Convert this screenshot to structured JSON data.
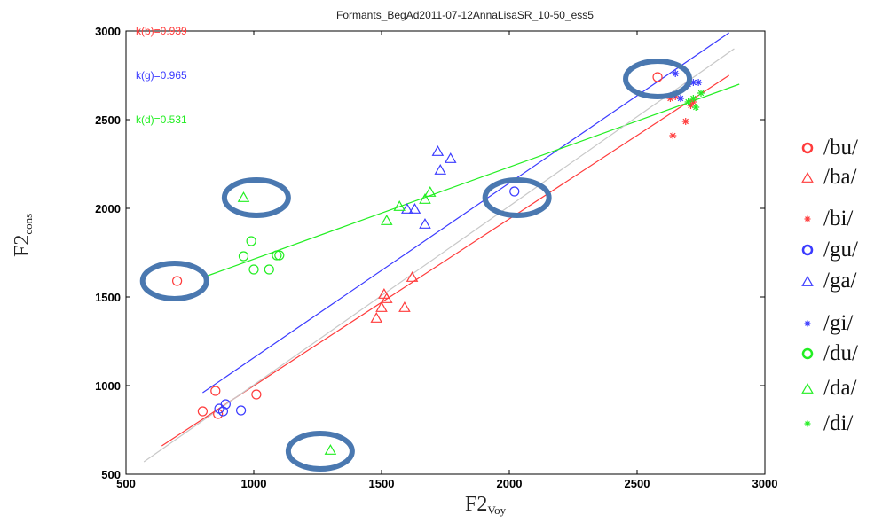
{
  "chart_data": {
    "type": "scatter",
    "title": "Formants_BegAd2011-07-12AnnaLisaSR_10-50_ess5",
    "xlabel": {
      "main": "F2",
      "sub": "Voy"
    },
    "ylabel": {
      "main": "F2",
      "sub": "cons"
    },
    "xlim": [
      500,
      3000
    ],
    "ylim": [
      500,
      3000
    ],
    "xticks": [
      "500",
      "1000",
      "1500",
      "2000",
      "2500",
      "3000"
    ],
    "yticks": [
      "500",
      "1000",
      "1500",
      "2000",
      "2500",
      "3000"
    ],
    "grid": false,
    "colors": {
      "b": "#ff3b3b",
      "g": "#3b3bff",
      "d": "#22ee22"
    },
    "k_labels": [
      {
        "text": "k(b)=0.939",
        "group": "b"
      },
      {
        "text": "k(g)=0.965",
        "group": "g"
      },
      {
        "text": "k(d)=0.531",
        "group": "d"
      }
    ],
    "series": [
      {
        "name": "/bu/",
        "group": "b",
        "marker": "circle",
        "points": [
          [
            700,
            1590
          ],
          [
            800,
            855
          ],
          [
            850,
            970
          ],
          [
            860,
            840
          ],
          [
            1010,
            950
          ],
          [
            2580,
            2740
          ]
        ]
      },
      {
        "name": "/ba/",
        "group": "b",
        "marker": "triangle",
        "points": [
          [
            1480,
            1380
          ],
          [
            1500,
            1440
          ],
          [
            1510,
            1515
          ],
          [
            1520,
            1490
          ],
          [
            1590,
            1440
          ],
          [
            1620,
            1610
          ]
        ]
      },
      {
        "name": "/bi/",
        "group": "b",
        "marker": "star",
        "points": [
          [
            2630,
            2620
          ],
          [
            2640,
            2410
          ],
          [
            2690,
            2490
          ],
          [
            2710,
            2580
          ],
          [
            2720,
            2600
          ],
          [
            2650,
            2630
          ]
        ]
      },
      {
        "name": "/gu/",
        "group": "g",
        "marker": "circle",
        "points": [
          [
            865,
            870
          ],
          [
            880,
            855
          ],
          [
            890,
            895
          ],
          [
            950,
            860
          ],
          [
            2020,
            2095
          ]
        ]
      },
      {
        "name": "/ga/",
        "group": "g",
        "marker": "triangle",
        "points": [
          [
            1600,
            1995
          ],
          [
            1630,
            1995
          ],
          [
            1670,
            1910
          ],
          [
            1720,
            2320
          ],
          [
            1730,
            2215
          ],
          [
            1770,
            2280
          ]
        ]
      },
      {
        "name": "/gi/",
        "group": "g",
        "marker": "star",
        "points": [
          [
            2640,
            2640
          ],
          [
            2670,
            2620
          ],
          [
            2700,
            2700
          ],
          [
            2720,
            2710
          ],
          [
            2740,
            2710
          ],
          [
            2650,
            2760
          ]
        ]
      },
      {
        "name": "/du/",
        "group": "d",
        "marker": "circle",
        "points": [
          [
            960,
            1730
          ],
          [
            990,
            1815
          ],
          [
            1000,
            1655
          ],
          [
            1060,
            1655
          ],
          [
            1090,
            1735
          ],
          [
            1100,
            1735
          ]
        ]
      },
      {
        "name": "/da/",
        "group": "d",
        "marker": "triangle",
        "points": [
          [
            960,
            2060
          ],
          [
            1300,
            635
          ],
          [
            1520,
            1930
          ],
          [
            1570,
            2010
          ],
          [
            1670,
            2050
          ],
          [
            1690,
            2090
          ]
        ]
      },
      {
        "name": "/di/",
        "group": "d",
        "marker": "star",
        "points": [
          [
            2720,
            2620
          ],
          [
            2730,
            2570
          ],
          [
            2750,
            2650
          ],
          [
            2700,
            2600
          ]
        ]
      }
    ],
    "fit_lines": [
      {
        "group": "b",
        "from": [
          640,
          660
        ],
        "to": [
          2860,
          2750
        ]
      },
      {
        "group": "g",
        "from": [
          800,
          960
        ],
        "to": [
          2860,
          2990
        ]
      },
      {
        "group": "d",
        "from": [
          820,
          1620
        ],
        "to": [
          2900,
          2700
        ]
      },
      {
        "group": "ref",
        "color": "#c8c8c8",
        "from": [
          570,
          570
        ],
        "to": [
          2880,
          2900
        ]
      }
    ],
    "highlight_ellipses": [
      {
        "center": [
          690,
          1590
        ]
      },
      {
        "center": [
          1010,
          2060
        ]
      },
      {
        "center": [
          2030,
          2060
        ]
      },
      {
        "center": [
          1260,
          630
        ]
      },
      {
        "center": [
          2580,
          2730
        ]
      }
    ],
    "highlight_color": "#4a78b0"
  }
}
